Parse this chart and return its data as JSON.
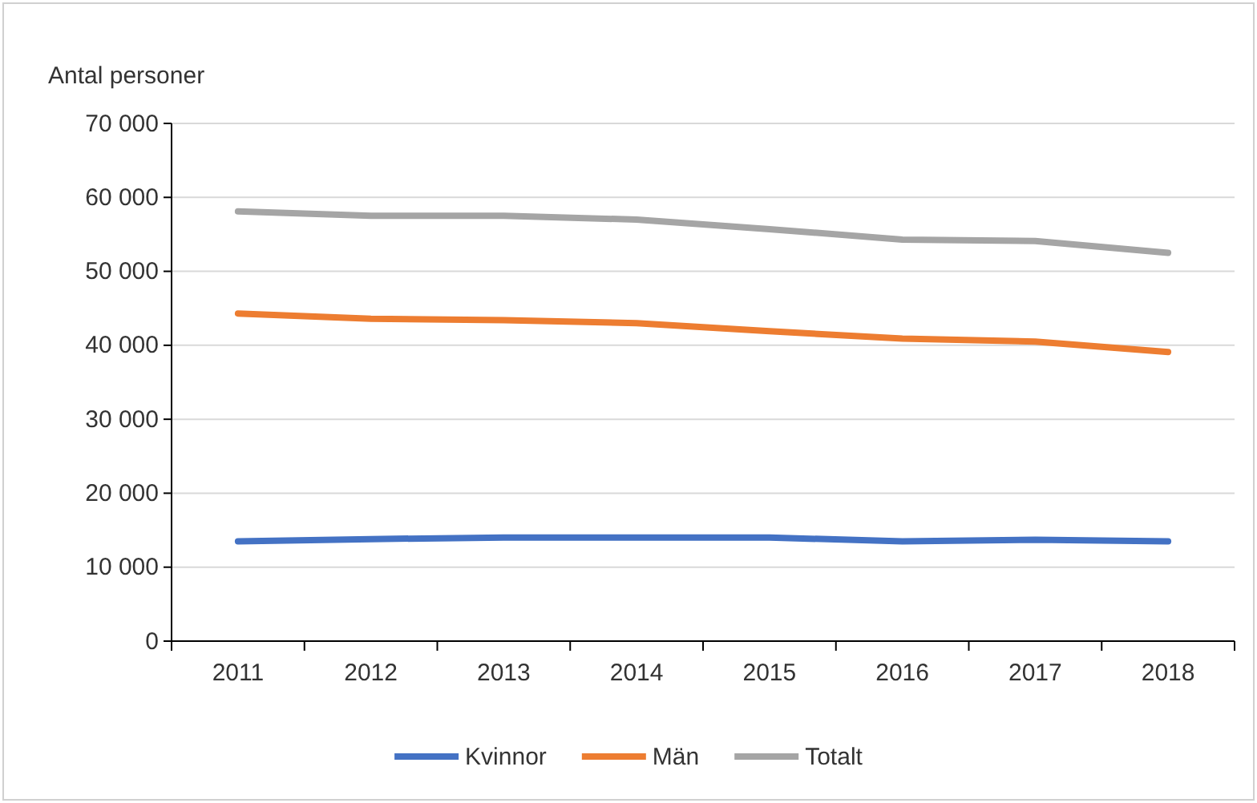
{
  "chart_data": {
    "type": "line",
    "ylabel": "Antal personer",
    "categories": [
      "2011",
      "2012",
      "2013",
      "2014",
      "2015",
      "2016",
      "2017",
      "2018"
    ],
    "series": [
      {
        "name": "Kvinnor",
        "color": "#4472c4",
        "values": [
          13500,
          13800,
          14000,
          14000,
          14000,
          13500,
          13700,
          13500
        ]
      },
      {
        "name": "Män",
        "color": "#ed7d31",
        "values": [
          44300,
          43600,
          43400,
          43000,
          41900,
          40900,
          40500,
          39100
        ]
      },
      {
        "name": "Totalt",
        "color": "#a5a5a5",
        "values": [
          58100,
          57500,
          57500,
          57000,
          55700,
          54300,
          54100,
          52500
        ]
      }
    ],
    "ylim": [
      0,
      70000
    ],
    "yticks": [
      {
        "value": 0,
        "label": "0"
      },
      {
        "value": 10000,
        "label": "10 000"
      },
      {
        "value": 20000,
        "label": "20 000"
      },
      {
        "value": 30000,
        "label": "30 000"
      },
      {
        "value": 40000,
        "label": "40 000"
      },
      {
        "value": 50000,
        "label": "50 000"
      },
      {
        "value": 60000,
        "label": "60 000"
      },
      {
        "value": 70000,
        "label": "70 000"
      }
    ],
    "grid": "y",
    "legend": "bottom",
    "marker": "none",
    "line_style": "solid"
  }
}
